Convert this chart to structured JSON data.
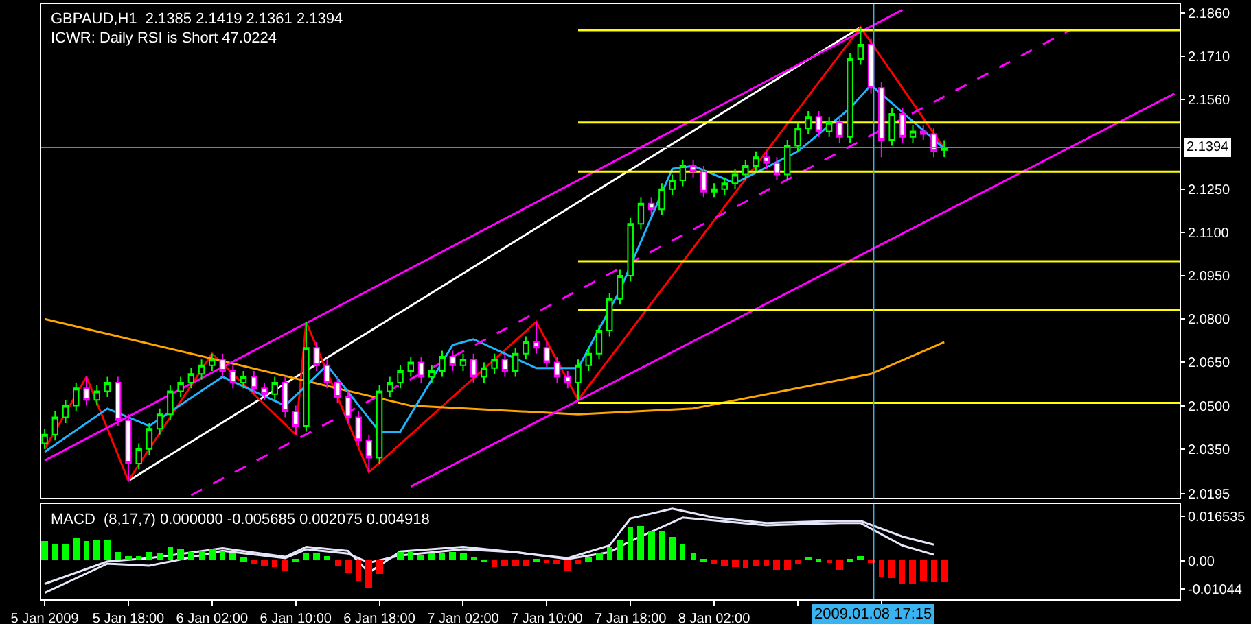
{
  "chart_data": [
    {
      "type": "candlestick",
      "title": "GBPAUD,H1  2.1385 2.1419 2.1361 2.1394",
      "subtitle": "ICWR: Daily RSI is Short 47.0224",
      "x": [
        "2009-01-05T10:00",
        "2009-01-05T11:00",
        "2009-01-05T12:00",
        "2009-01-05T13:00",
        "2009-01-05T14:00",
        "2009-01-05T15:00",
        "2009-01-05T16:00",
        "2009-01-05T17:00",
        "2009-01-05T18:00",
        "2009-01-05T19:00",
        "2009-01-05T20:00",
        "2009-01-05T21:00",
        "2009-01-05T22:00",
        "2009-01-05T23:00",
        "2009-01-06T00:00",
        "2009-01-06T01:00",
        "2009-01-06T02:00",
        "2009-01-06T03:00",
        "2009-01-06T04:00",
        "2009-01-06T05:00",
        "2009-01-06T06:00",
        "2009-01-06T07:00",
        "2009-01-06T08:00",
        "2009-01-06T09:00",
        "2009-01-06T10:00",
        "2009-01-06T11:00",
        "2009-01-06T12:00",
        "2009-01-06T13:00",
        "2009-01-06T14:00",
        "2009-01-06T15:00",
        "2009-01-06T16:00",
        "2009-01-06T17:00",
        "2009-01-06T18:00",
        "2009-01-06T19:00",
        "2009-01-06T20:00",
        "2009-01-06T21:00",
        "2009-01-06T22:00",
        "2009-01-06T23:00",
        "2009-01-07T00:00",
        "2009-01-07T01:00",
        "2009-01-07T02:00",
        "2009-01-07T03:00",
        "2009-01-07T04:00",
        "2009-01-07T05:00",
        "2009-01-07T06:00",
        "2009-01-07T07:00",
        "2009-01-07T08:00",
        "2009-01-07T09:00",
        "2009-01-07T10:00",
        "2009-01-07T11:00",
        "2009-01-07T12:00",
        "2009-01-07T13:00",
        "2009-01-07T14:00",
        "2009-01-07T15:00",
        "2009-01-07T16:00",
        "2009-01-07T17:00",
        "2009-01-07T18:00",
        "2009-01-07T19:00",
        "2009-01-07T20:00",
        "2009-01-07T21:00",
        "2009-01-07T22:00",
        "2009-01-07T23:00",
        "2009-01-08T00:00",
        "2009-01-08T01:00",
        "2009-01-08T02:00",
        "2009-01-08T03:00",
        "2009-01-08T04:00",
        "2009-01-08T05:00",
        "2009-01-08T06:00",
        "2009-01-08T07:00",
        "2009-01-08T08:00",
        "2009-01-08T09:00",
        "2009-01-08T10:00",
        "2009-01-08T11:00",
        "2009-01-08T12:00",
        "2009-01-08T13:00",
        "2009-01-08T14:00",
        "2009-01-08T15:00",
        "2009-01-08T16:00",
        "2009-01-08T17:00",
        "2009-01-08T18:00",
        "2009-01-08T19:00",
        "2009-01-08T20:00",
        "2009-01-08T21:00",
        "2009-01-08T22:00",
        "2009-01-08T23:00",
        "2009-01-09T00:00"
      ],
      "ohlc": [
        [
          2.037,
          2.042,
          2.035,
          2.04
        ],
        [
          2.04,
          2.048,
          2.038,
          2.046
        ],
        [
          2.046,
          2.052,
          2.044,
          2.05
        ],
        [
          2.05,
          2.058,
          2.048,
          2.056
        ],
        [
          2.056,
          2.06,
          2.05,
          2.052
        ],
        [
          2.052,
          2.057,
          2.05,
          2.055
        ],
        [
          2.055,
          2.06,
          2.053,
          2.058
        ],
        [
          2.058,
          2.06,
          2.043,
          2.045
        ],
        [
          2.045,
          2.047,
          2.024,
          2.03
        ],
        [
          2.03,
          2.037,
          2.028,
          2.035
        ],
        [
          2.035,
          2.044,
          2.033,
          2.042
        ],
        [
          2.042,
          2.049,
          2.04,
          2.047
        ],
        [
          2.047,
          2.057,
          2.045,
          2.055
        ],
        [
          2.055,
          2.06,
          2.053,
          2.058
        ],
        [
          2.058,
          2.063,
          2.056,
          2.061
        ],
        [
          2.061,
          2.066,
          2.059,
          2.064
        ],
        [
          2.064,
          2.068,
          2.062,
          2.066
        ],
        [
          2.066,
          2.068,
          2.06,
          2.062
        ],
        [
          2.062,
          2.064,
          2.056,
          2.058
        ],
        [
          2.058,
          2.062,
          2.056,
          2.06
        ],
        [
          2.06,
          2.062,
          2.054,
          2.056
        ],
        [
          2.056,
          2.058,
          2.052,
          2.054
        ],
        [
          2.054,
          2.06,
          2.052,
          2.058
        ],
        [
          2.058,
          2.06,
          2.046,
          2.048
        ],
        [
          2.048,
          2.05,
          2.04,
          2.043
        ],
        [
          2.043,
          2.079,
          2.041,
          2.07
        ],
        [
          2.07,
          2.072,
          2.062,
          2.064
        ],
        [
          2.064,
          2.066,
          2.056,
          2.058
        ],
        [
          2.058,
          2.06,
          2.051,
          2.053
        ],
        [
          2.053,
          2.055,
          2.044,
          2.046
        ],
        [
          2.046,
          2.048,
          2.036,
          2.038
        ],
        [
          2.038,
          2.04,
          2.027,
          2.032
        ],
        [
          2.032,
          2.057,
          2.03,
          2.055
        ],
        [
          2.055,
          2.06,
          2.053,
          2.058
        ],
        [
          2.058,
          2.064,
          2.056,
          2.062
        ],
        [
          2.062,
          2.067,
          2.06,
          2.065
        ],
        [
          2.065,
          2.067,
          2.058,
          2.06
        ],
        [
          2.06,
          2.064,
          2.058,
          2.062
        ],
        [
          2.062,
          2.069,
          2.06,
          2.067
        ],
        [
          2.067,
          2.069,
          2.062,
          2.064
        ],
        [
          2.064,
          2.068,
          2.062,
          2.066
        ],
        [
          2.066,
          2.068,
          2.058,
          2.06
        ],
        [
          2.06,
          2.065,
          2.058,
          2.063
        ],
        [
          2.063,
          2.068,
          2.061,
          2.066
        ],
        [
          2.066,
          2.068,
          2.06,
          2.062
        ],
        [
          2.062,
          2.07,
          2.06,
          2.068
        ],
        [
          2.068,
          2.074,
          2.066,
          2.072
        ],
        [
          2.072,
          2.079,
          2.068,
          2.07
        ],
        [
          2.07,
          2.072,
          2.063,
          2.065
        ],
        [
          2.065,
          2.067,
          2.058,
          2.06
        ],
        [
          2.06,
          2.062,
          2.056,
          2.058
        ],
        [
          2.058,
          2.066,
          2.052,
          2.064
        ],
        [
          2.064,
          2.07,
          2.062,
          2.068
        ],
        [
          2.068,
          2.078,
          2.066,
          2.076
        ],
        [
          2.076,
          2.089,
          2.074,
          2.087
        ],
        [
          2.087,
          2.097,
          2.085,
          2.095
        ],
        [
          2.095,
          2.115,
          2.093,
          2.113
        ],
        [
          2.113,
          2.122,
          2.111,
          2.12
        ],
        [
          2.12,
          2.122,
          2.116,
          2.118
        ],
        [
          2.118,
          2.127,
          2.116,
          2.125
        ],
        [
          2.125,
          2.13,
          2.123,
          2.128
        ],
        [
          2.128,
          2.135,
          2.126,
          2.133
        ],
        [
          2.133,
          2.135,
          2.129,
          2.131
        ],
        [
          2.131,
          2.133,
          2.122,
          2.124
        ],
        [
          2.124,
          2.127,
          2.122,
          2.125
        ],
        [
          2.125,
          2.129,
          2.123,
          2.127
        ],
        [
          2.127,
          2.132,
          2.125,
          2.13
        ],
        [
          2.13,
          2.135,
          2.128,
          2.133
        ],
        [
          2.133,
          2.138,
          2.131,
          2.136
        ],
        [
          2.136,
          2.138,
          2.132,
          2.134
        ],
        [
          2.134,
          2.136,
          2.128,
          2.13
        ],
        [
          2.13,
          2.142,
          2.128,
          2.14
        ],
        [
          2.14,
          2.148,
          2.138,
          2.146
        ],
        [
          2.146,
          2.152,
          2.144,
          2.15
        ],
        [
          2.15,
          2.152,
          2.143,
          2.145
        ],
        [
          2.145,
          2.15,
          2.143,
          2.148
        ],
        [
          2.148,
          2.15,
          2.141,
          2.143
        ],
        [
          2.143,
          2.172,
          2.141,
          2.17
        ],
        [
          2.17,
          2.181,
          2.168,
          2.175
        ],
        [
          2.175,
          2.177,
          2.158,
          2.16
        ],
        [
          2.16,
          2.162,
          2.136,
          2.142
        ],
        [
          2.142,
          2.153,
          2.14,
          2.151
        ],
        [
          2.151,
          2.153,
          2.141,
          2.143
        ],
        [
          2.143,
          2.147,
          2.141,
          2.145
        ],
        [
          2.145,
          2.147,
          2.142,
          2.144
        ],
        [
          2.144,
          2.146,
          2.136,
          2.138
        ],
        [
          2.1385,
          2.1419,
          2.1361,
          2.1394
        ]
      ],
      "colors": [
        "#00ff00",
        "#00ff00",
        "#00ff00",
        "#00ff00",
        "#ff00ff",
        "#00ff00",
        "#00ff00",
        "#ff00ff",
        "#ff00ff",
        "#00ff00",
        "#00ff00",
        "#00ff00",
        "#00ff00",
        "#00ff00",
        "#00ff00",
        "#00ff00",
        "#00ff00",
        "#ff00ff",
        "#ff00ff",
        "#00ff00",
        "#ff00ff",
        "#ff00ff",
        "#00ff00",
        "#ff00ff",
        "#ff00ff",
        "#00ff00",
        "#ff00ff",
        "#ff00ff",
        "#ff00ff",
        "#ff00ff",
        "#ff00ff",
        "#ff00ff",
        "#00ff00",
        "#00ff00",
        "#00ff00",
        "#00ff00",
        "#ff00ff",
        "#00ff00",
        "#00ff00",
        "#ff00ff",
        "#00ff00",
        "#ff00ff",
        "#00ff00",
        "#00ff00",
        "#ff00ff",
        "#00ff00",
        "#00ff00",
        "#ff00ff",
        "#ff00ff",
        "#ff00ff",
        "#ff00ff",
        "#00ff00",
        "#00ff00",
        "#00ff00",
        "#00ff00",
        "#00ff00",
        "#00ff00",
        "#00ff00",
        "#ff00ff",
        "#00ff00",
        "#00ff00",
        "#00ff00",
        "#ff00ff",
        "#ff00ff",
        "#00ff00",
        "#00ff00",
        "#00ff00",
        "#00ff00",
        "#00ff00",
        "#ff00ff",
        "#ff00ff",
        "#00ff00",
        "#00ff00",
        "#00ff00",
        "#ff00ff",
        "#00ff00",
        "#ff00ff",
        "#00ff00",
        "#00ff00",
        "#ff00ff",
        "#ff00ff",
        "#00ff00",
        "#ff00ff",
        "#00ff00",
        "#ff00ff",
        "#ff00ff",
        "#00ff00"
      ],
      "series": [
        {
          "type": "line",
          "color": "#ffffff",
          "x": [
            "2009-01-05T18:00",
            "2009-01-08T16:00"
          ],
          "values": [
            2.024,
            2.181
          ]
        },
        {
          "type": "line",
          "color": "#ff0000",
          "x": [
            "2009-01-05T10:00",
            "2009-01-05T14:00",
            "2009-01-05T18:00",
            "2009-01-06T02:00",
            "2009-01-06T10:00",
            "2009-01-06T11:00",
            "2009-01-06T17:00",
            "2009-01-07T09:00",
            "2009-01-07T13:00",
            "2009-01-08T16:00",
            "2009-01-09T00:00"
          ],
          "values": [
            2.035,
            2.06,
            2.024,
            2.068,
            2.04,
            2.079,
            2.027,
            2.079,
            2.052,
            2.181,
            2.139
          ]
        },
        {
          "type": "line",
          "color": "#ffa500",
          "x": [
            "2009-01-05T10:00",
            "2009-01-06T21:00",
            "2009-01-07T13:00",
            "2009-01-08T00:00",
            "2009-01-08T17:00",
            "2009-01-09T00:00"
          ],
          "values": [
            2.08,
            2.05,
            2.047,
            2.049,
            2.061,
            2.072
          ]
        },
        {
          "type": "line",
          "color": "#1eb4ff",
          "x": [
            "2009-01-05T10:00",
            "2009-01-05T16:00",
            "2009-01-05T20:00",
            "2009-01-06T03:00",
            "2009-01-06T09:00",
            "2009-01-06T13:00",
            "2009-01-06T18:00",
            "2009-01-06T20:00",
            "2009-01-07T01:00",
            "2009-01-07T03:00",
            "2009-01-07T09:00",
            "2009-01-07T13:00",
            "2009-01-07T17:00",
            "2009-01-07T22:00",
            "2009-01-08T00:00",
            "2009-01-08T04:00",
            "2009-01-08T10:00",
            "2009-01-08T15:00",
            "2009-01-08T17:00",
            "2009-01-09T00:00"
          ],
          "values": [
            2.034,
            2.049,
            2.043,
            2.06,
            2.05,
            2.064,
            2.041,
            2.041,
            2.071,
            2.073,
            2.063,
            2.063,
            2.09,
            2.132,
            2.133,
            2.127,
            2.138,
            2.153,
            2.161,
            2.139
          ]
        },
        {
          "type": "line",
          "color": "#ff00ff",
          "x": [
            "2009-01-05T10:00",
            "2009-01-08T20:00"
          ],
          "values": [
            2.031,
            2.187
          ]
        },
        {
          "type": "line",
          "color": "#ff00ff",
          "line_style": "dashed",
          "x": [
            "2009-01-06T00:00",
            "2009-01-09T12:00"
          ],
          "values": [
            2.019,
            2.18
          ]
        },
        {
          "type": "line",
          "color": "#ff00ff",
          "x": [
            "2009-01-06T21:00",
            "2009-01-09T22:00"
          ],
          "values": [
            2.022,
            2.158
          ]
        },
        {
          "type": "line",
          "color": "#ffff00",
          "x": [
            "2009-01-07T13:00",
            "2009-01-09T22:30"
          ],
          "values": [
            2.18,
            2.18
          ]
        },
        {
          "type": "line",
          "color": "#ffff00",
          "x": [
            "2009-01-07T13:00",
            "2009-01-09T22:30"
          ],
          "values": [
            2.148,
            2.148
          ]
        },
        {
          "type": "line",
          "color": "#ffff00",
          "x": [
            "2009-01-07T13:00",
            "2009-01-09T22:30"
          ],
          "values": [
            2.131,
            2.131
          ]
        },
        {
          "type": "line",
          "color": "#ffff00",
          "x": [
            "2009-01-07T13:00",
            "2009-01-09T22:30"
          ],
          "values": [
            2.1,
            2.1
          ]
        },
        {
          "type": "line",
          "color": "#ffff00",
          "x": [
            "2009-01-07T13:00",
            "2009-01-09T22:30"
          ],
          "values": [
            2.083,
            2.083
          ]
        },
        {
          "type": "line",
          "color": "#ffff00",
          "x": [
            "2009-01-07T13:00",
            "2009-01-09T22:30"
          ],
          "values": [
            2.051,
            2.051
          ]
        }
      ],
      "ref_lines": [
        {
          "axis": "y",
          "value": 2.1394,
          "label": "2.1394",
          "color": "#808080"
        },
        {
          "axis": "x",
          "value": "2009-01-08T17:15",
          "color": "#3ab4f0"
        }
      ],
      "xlim": [
        "2009-01-05T09:40",
        "2009-01-09T22:30"
      ],
      "ylim": [
        2.018,
        2.189
      ],
      "yticks": [
        {
          "value": 2.186,
          "label": "2.1860"
        },
        {
          "value": 2.171,
          "label": "2.1710"
        },
        {
          "value": 2.156,
          "label": "2.1560"
        },
        {
          "value": 2.125,
          "label": "2.1250"
        },
        {
          "value": 2.11,
          "label": "2.1100"
        },
        {
          "value": 2.095,
          "label": "2.0950"
        },
        {
          "value": 2.08,
          "label": "2.0800"
        },
        {
          "value": 2.065,
          "label": "2.0650"
        },
        {
          "value": 2.05,
          "label": "2.0500"
        },
        {
          "value": 2.035,
          "label": "2.0350"
        },
        {
          "value": 2.0195,
          "label": "2.0195"
        }
      ],
      "tick_labels": "y"
    },
    {
      "type": "bar",
      "title": "MACD  (8,17,7) 0.000000 -0.005685 0.002075 0.004918",
      "x": [
        "2009-01-05T10:00",
        "2009-01-05T11:00",
        "2009-01-05T12:00",
        "2009-01-05T13:00",
        "2009-01-05T14:00",
        "2009-01-05T15:00",
        "2009-01-05T16:00",
        "2009-01-05T17:00",
        "2009-01-05T18:00",
        "2009-01-05T19:00",
        "2009-01-05T20:00",
        "2009-01-05T21:00",
        "2009-01-05T22:00",
        "2009-01-05T23:00",
        "2009-01-06T00:00",
        "2009-01-06T01:00",
        "2009-01-06T02:00",
        "2009-01-06T03:00",
        "2009-01-06T04:00",
        "2009-01-06T05:00",
        "2009-01-06T06:00",
        "2009-01-06T07:00",
        "2009-01-06T08:00",
        "2009-01-06T09:00",
        "2009-01-06T10:00",
        "2009-01-06T11:00",
        "2009-01-06T12:00",
        "2009-01-06T13:00",
        "2009-01-06T14:00",
        "2009-01-06T15:00",
        "2009-01-06T16:00",
        "2009-01-06T17:00",
        "2009-01-06T18:00",
        "2009-01-06T19:00",
        "2009-01-06T20:00",
        "2009-01-06T21:00",
        "2009-01-06T22:00",
        "2009-01-06T23:00",
        "2009-01-07T00:00",
        "2009-01-07T01:00",
        "2009-01-07T02:00",
        "2009-01-07T03:00",
        "2009-01-07T04:00",
        "2009-01-07T05:00",
        "2009-01-07T06:00",
        "2009-01-07T07:00",
        "2009-01-07T08:00",
        "2009-01-07T09:00",
        "2009-01-07T10:00",
        "2009-01-07T11:00",
        "2009-01-07T12:00",
        "2009-01-07T13:00",
        "2009-01-07T14:00",
        "2009-01-07T15:00",
        "2009-01-07T16:00",
        "2009-01-07T17:00",
        "2009-01-07T18:00",
        "2009-01-07T19:00",
        "2009-01-07T20:00",
        "2009-01-07T21:00",
        "2009-01-07T22:00",
        "2009-01-07T23:00",
        "2009-01-08T00:00",
        "2009-01-08T01:00",
        "2009-01-08T02:00",
        "2009-01-08T03:00",
        "2009-01-08T04:00",
        "2009-01-08T05:00",
        "2009-01-08T06:00",
        "2009-01-08T07:00",
        "2009-01-08T08:00",
        "2009-01-08T09:00",
        "2009-01-08T10:00",
        "2009-01-08T11:00",
        "2009-01-08T12:00",
        "2009-01-08T13:00",
        "2009-01-08T14:00",
        "2009-01-08T15:00",
        "2009-01-08T16:00",
        "2009-01-08T17:00",
        "2009-01-08T18:00",
        "2009-01-08T19:00",
        "2009-01-08T20:00",
        "2009-01-08T21:00",
        "2009-01-08T22:00",
        "2009-01-08T23:00",
        "2009-01-09T00:00"
      ],
      "values": [
        0.0073,
        0.0063,
        0.0063,
        0.0083,
        0.0073,
        0.0077,
        0.0078,
        0.0033,
        0.0015,
        0.0018,
        0.0033,
        0.0028,
        0.0053,
        0.0043,
        0.0033,
        0.0038,
        0.0042,
        0.004,
        0.003,
        0.001,
        -0.0015,
        -0.002,
        -0.0025,
        -0.004,
        0.0005,
        0.0027,
        0.0027,
        0.0015,
        -0.0018,
        -0.0045,
        -0.0075,
        -0.01,
        -0.005,
        null,
        0.0033,
        0.0033,
        0.0023,
        0.003,
        0.0027,
        0.0033,
        0.003,
        0.0013,
        0.0002,
        -0.0025,
        -0.002,
        -0.002,
        -0.002,
        0.0005,
        -0.001,
        -0.0013,
        -0.004,
        -0.0015,
        0.001,
        0.003,
        0.0055,
        0.0078,
        0.0123,
        0.0128,
        0.011,
        0.011,
        0.0087,
        0.0063,
        0.0028,
        0.0005,
        -0.0015,
        -0.002,
        -0.0025,
        -0.003,
        -0.002,
        -0.002,
        -0.0035,
        -0.0035,
        -0.0015,
        0.0012,
        0.0005,
        -0.0008,
        -0.0035,
        0.0007,
        0.0018,
        -0.0008,
        -0.006,
        -0.0065,
        -0.0085,
        -0.0085,
        -0.0075,
        -0.008,
        -0.008
      ],
      "colors": [
        "#00ff00",
        "#00ff00",
        "#00ff00",
        "#00ff00",
        "#00ff00",
        "#00ff00",
        "#00ff00",
        "#00ff00",
        "#00ff00",
        "#00ff00",
        "#00ff00",
        "#00ff00",
        "#00ff00",
        "#00ff00",
        "#00ff00",
        "#00ff00",
        "#00ff00",
        "#00ff00",
        "#00ff00",
        "#00ff00",
        "#ff0000",
        "#ff0000",
        "#ff0000",
        "#ff0000",
        "#00ff00",
        "#00ff00",
        "#00ff00",
        "#00ff00",
        "#ff0000",
        "#ff0000",
        "#ff0000",
        "#ff0000",
        "#ff0000",
        "#00ff00",
        "#00ff00",
        "#00ff00",
        "#00ff00",
        "#00ff00",
        "#00ff00",
        "#00ff00",
        "#00ff00",
        "#00ff00",
        "#00ff00",
        "#ff0000",
        "#ff0000",
        "#ff0000",
        "#ff0000",
        "#00ff00",
        "#ff0000",
        "#ff0000",
        "#ff0000",
        "#ff0000",
        "#00ff00",
        "#00ff00",
        "#00ff00",
        "#00ff00",
        "#00ff00",
        "#00ff00",
        "#00ff00",
        "#00ff00",
        "#00ff00",
        "#00ff00",
        "#00ff00",
        "#00ff00",
        "#ff0000",
        "#ff0000",
        "#ff0000",
        "#ff0000",
        "#ff0000",
        "#ff0000",
        "#ff0000",
        "#ff0000",
        "#ff0000",
        "#00ff00",
        "#00ff00",
        "#ff0000",
        "#ff0000",
        "#00ff00",
        "#00ff00",
        "#ff0000",
        "#ff0000",
        "#ff0000",
        "#ff0000",
        "#ff0000",
        "#ff0000",
        "#ff0000",
        "#ff0000"
      ],
      "series": [
        {
          "type": "line",
          "color": "#e6e6fa",
          "x": [
            "2009-01-05T10:00",
            "2009-01-05T16:00",
            "2009-01-05T20:00",
            "2009-01-06T03:00",
            "2009-01-06T09:00",
            "2009-01-06T11:00",
            "2009-01-06T15:00",
            "2009-01-06T17:00",
            "2009-01-06T20:00",
            "2009-01-07T02:00",
            "2009-01-07T07:00",
            "2009-01-07T12:00",
            "2009-01-07T16:00",
            "2009-01-07T18:00",
            "2009-01-07T22:00",
            "2009-01-08T02:00",
            "2009-01-08T07:00",
            "2009-01-08T14:00",
            "2009-01-08T16:00",
            "2009-01-08T20:00",
            "2009-01-08T23:00"
          ],
          "values": [
            -0.0085,
            -0.0002,
            0.001,
            0.0047,
            0.0015,
            0.0052,
            0.0037,
            -0.0043,
            0.0035,
            0.0052,
            0.0032,
            0.001,
            0.0057,
            0.0157,
            0.0193,
            0.016,
            0.014,
            0.0148,
            0.0148,
            0.009,
            0.006
          ]
        },
        {
          "type": "line",
          "color": "#e6e6fa",
          "x": [
            "2009-01-05T10:00",
            "2009-01-05T16:00",
            "2009-01-05T20:00",
            "2009-01-06T03:00",
            "2009-01-06T09:00",
            "2009-01-06T11:00",
            "2009-01-06T15:00",
            "2009-01-06T17:00",
            "2009-01-06T20:00",
            "2009-01-07T02:00",
            "2009-01-07T07:00",
            "2009-01-07T12:00",
            "2009-01-07T16:00",
            "2009-01-07T18:00",
            "2009-01-07T23:00",
            "2009-01-08T07:00",
            "2009-01-08T14:00",
            "2009-01-08T16:00",
            "2009-01-08T20:00",
            "2009-01-08T23:00"
          ],
          "values": [
            -0.0118,
            -0.001,
            -0.0018,
            0.0037,
            0.001,
            0.0043,
            0.0027,
            -0.0007,
            0.002,
            0.0043,
            0.0032,
            0.0007,
            0.0032,
            0.0073,
            0.016,
            0.0132,
            0.014,
            0.014,
            0.0057,
            0.0023
          ]
        }
      ],
      "ref_lines": [
        {
          "axis": "x",
          "value": "2009-01-08T17:15",
          "label": "2009.01.08 17:15",
          "color": "#3ab4f0"
        }
      ],
      "xlim": [
        "2009-01-05T09:40",
        "2009-01-09T22:30"
      ],
      "xticks": [
        {
          "value": "2009-01-05T10:00",
          "label": "5 Jan 2009"
        },
        {
          "value": "2009-01-05T18:00",
          "label": "5 Jan 18:00"
        },
        {
          "value": "2009-01-06T02:00",
          "label": "6 Jan 02:00"
        },
        {
          "value": "2009-01-06T10:00",
          "label": "6 Jan 10:00"
        },
        {
          "value": "2009-01-06T18:00",
          "label": "6 Jan 18:00"
        },
        {
          "value": "2009-01-07T02:00",
          "label": "7 Jan 02:00"
        },
        {
          "value": "2009-01-07T10:00",
          "label": "7 Jan 10:00"
        },
        {
          "value": "2009-01-07T18:00",
          "label": "7 Jan 18:00"
        },
        {
          "value": "2009-01-08T02:00",
          "label": "8 Jan 02:00"
        },
        {
          "value": "2009-01-08T10:00",
          "label": null
        },
        {
          "value": "2009-01-08T18:00",
          "label": null
        }
      ],
      "ylim": [
        -0.0142,
        0.021
      ],
      "yticks": [
        0.016535,
        {
          "value": 0,
          "label": "0.00"
        },
        -0.01044
      ]
    }
  ]
}
